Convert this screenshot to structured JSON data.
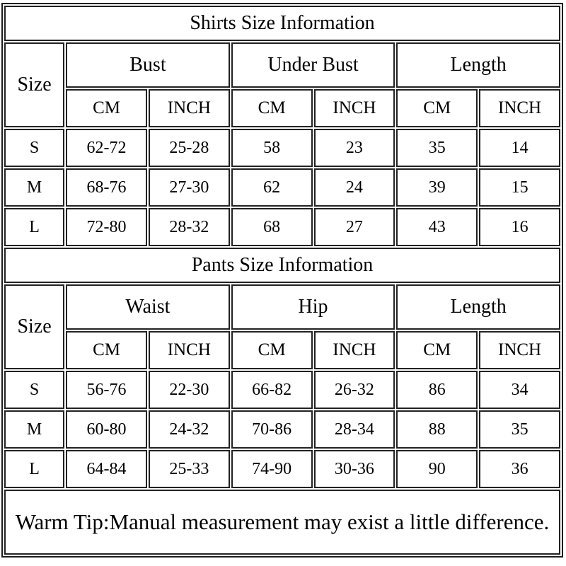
{
  "page": {
    "background_color": "#ffffff",
    "border_color": "#1d1d1d",
    "text_color": "#000000"
  },
  "shirts_table": {
    "title": "Shirts Size Information",
    "size_header": "Size",
    "groups": [
      {
        "label": "Bust"
      },
      {
        "label": "Under Bust"
      },
      {
        "label": "Length"
      }
    ],
    "unit_headers": [
      "CM",
      "INCH",
      "CM",
      "INCH",
      "CM",
      "INCH"
    ],
    "rows": [
      {
        "size": "S",
        "cells": [
          "62-72",
          "25-28",
          "58",
          "23",
          "35",
          "14"
        ]
      },
      {
        "size": "M",
        "cells": [
          "68-76",
          "27-30",
          "62",
          "24",
          "39",
          "15"
        ]
      },
      {
        "size": "L",
        "cells": [
          "72-80",
          "28-32",
          "68",
          "27",
          "43",
          "16"
        ]
      }
    ]
  },
  "pants_table": {
    "title": "Pants Size Information",
    "size_header": "Size",
    "groups": [
      {
        "label": "Waist"
      },
      {
        "label": "Hip"
      },
      {
        "label": "Length"
      }
    ],
    "unit_headers": [
      "CM",
      "INCH",
      "CM",
      "INCH",
      "CM",
      "INCH"
    ],
    "rows": [
      {
        "size": "S",
        "cells": [
          "56-76",
          "22-30",
          "66-82",
          "26-32",
          "86",
          "34"
        ]
      },
      {
        "size": "M",
        "cells": [
          "60-80",
          "24-32",
          "70-86",
          "28-34",
          "88",
          "35"
        ]
      },
      {
        "size": "L",
        "cells": [
          "64-84",
          "25-33",
          "74-90",
          "30-36",
          "90",
          "36"
        ]
      }
    ]
  },
  "footer": {
    "warm_tip": "Warm Tip:Manual measurement may exist a little difference."
  }
}
